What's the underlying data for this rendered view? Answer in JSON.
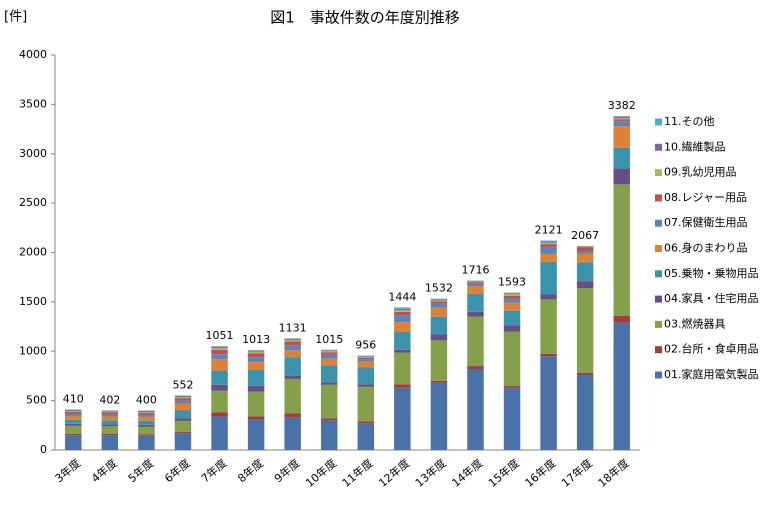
{
  "chart_data": {
    "type": "stacked-bar",
    "title": "図1　事故件数の年度別推移",
    "y_label": "[件]",
    "categories": [
      "3年度",
      "4年度",
      "5年度",
      "6年度",
      "7年度",
      "8年度",
      "9年度",
      "10年度",
      "11年度",
      "12年度",
      "13年度",
      "14年度",
      "15年度",
      "16年度",
      "17年度",
      "18年度"
    ],
    "totals": [
      410,
      402,
      400,
      552,
      1051,
      1013,
      1131,
      1015,
      956,
      1444,
      1532,
      1716,
      1593,
      2121,
      2067,
      3382
    ],
    "series": [
      {
        "name": "01.家庭用電気製品",
        "color": "#4a72a8",
        "values": [
          150,
          150,
          145,
          170,
          340,
          310,
          330,
          300,
          270,
          630,
          680,
          820,
          630,
          950,
          760,
          1290
        ]
      },
      {
        "name": "02.台所・食卓用品",
        "color": "#a53c38",
        "values": [
          15,
          15,
          15,
          15,
          40,
          30,
          40,
          20,
          20,
          35,
          20,
          30,
          20,
          25,
          20,
          70
        ]
      },
      {
        "name": "03.燃焼器具",
        "color": "#84a04a",
        "values": [
          80,
          75,
          75,
          110,
          220,
          250,
          350,
          340,
          350,
          320,
          410,
          500,
          550,
          550,
          860,
          1330
        ]
      },
      {
        "name": "04.家具・住宅用品",
        "color": "#664f86",
        "values": [
          20,
          20,
          20,
          25,
          60,
          60,
          30,
          25,
          25,
          30,
          60,
          50,
          60,
          50,
          70,
          160
        ]
      },
      {
        "name": "05.乗物・乗物用品",
        "color": "#3b93ab",
        "values": [
          40,
          40,
          40,
          80,
          140,
          160,
          190,
          170,
          170,
          180,
          180,
          180,
          150,
          330,
          190,
          210
        ]
      },
      {
        "name": "06.身のまわり品",
        "color": "#dc8236",
        "values": [
          40,
          40,
          40,
          70,
          120,
          80,
          70,
          70,
          60,
          100,
          90,
          80,
          80,
          80,
          90,
          220
        ]
      },
      {
        "name": "07.保健衛生用品",
        "color": "#5b84bd",
        "values": [
          20,
          20,
          20,
          30,
          50,
          50,
          50,
          40,
          25,
          70,
          40,
          25,
          40,
          70,
          25,
          50
        ]
      },
      {
        "name": "08.レジャー用品",
        "color": "#c4504c",
        "values": [
          20,
          20,
          20,
          25,
          45,
          40,
          40,
          25,
          15,
          35,
          25,
          15,
          30,
          30,
          40,
          20
        ]
      },
      {
        "name": "09.乳幼児用品",
        "color": "#9dbd5c",
        "values": [
          10,
          10,
          10,
          12,
          15,
          15,
          15,
          10,
          8,
          15,
          10,
          6,
          20,
          15,
          5,
          12
        ]
      },
      {
        "name": "10.繊維製品",
        "color": "#8166a4",
        "values": [
          10,
          7,
          10,
          10,
          12,
          10,
          10,
          10,
          8,
          15,
          10,
          5,
          8,
          12,
          4,
          12
        ]
      },
      {
        "name": "11.その他",
        "color": "#4aaec9",
        "values": [
          5,
          5,
          5,
          5,
          9,
          8,
          6,
          5,
          5,
          14,
          7,
          5,
          5,
          9,
          3,
          8
        ]
      }
    ],
    "ylim": [
      0,
      4000
    ],
    "yticks": [
      0,
      500,
      1000,
      1500,
      2000,
      2500,
      3000,
      3500,
      4000
    ]
  }
}
